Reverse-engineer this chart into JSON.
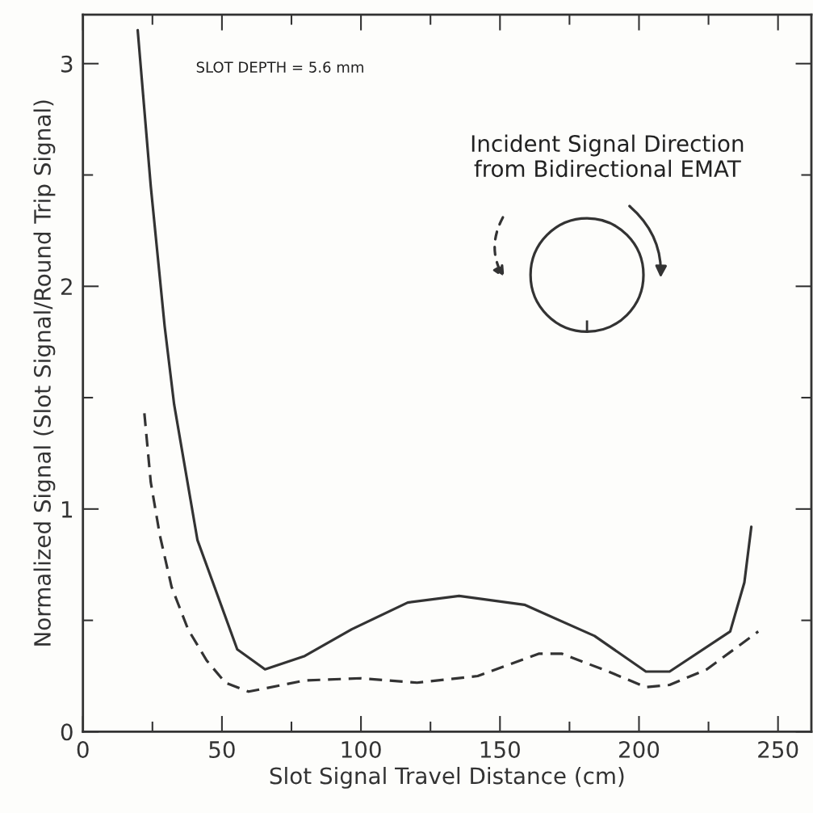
{
  "chart_data": {
    "type": "line",
    "xlabel": "Slot Signal Travel Distance (cm)",
    "ylabel": "Normalized Signal (Slot Signal/Round Trip Signal)",
    "annotations": [
      "SLOT DEPTH = 5.6 mm",
      "Incident Signal Direction\nfrom Bidirectional EMAT"
    ],
    "xlim": [
      0,
      262
    ],
    "ylim": [
      0,
      3.22
    ],
    "xticks": [
      0,
      {
        "value": 25,
        "label": null
      },
      50,
      {
        "value": 75,
        "label": null
      },
      100,
      {
        "value": 125,
        "label": null
      },
      150,
      {
        "value": 175,
        "label": null
      },
      200,
      {
        "value": 225,
        "label": null
      },
      250
    ],
    "yticks": [
      0,
      {
        "value": 0.5,
        "label": null
      },
      1,
      {
        "value": 1.5,
        "label": null
      },
      2,
      {
        "value": 2.5,
        "label": null
      },
      3
    ],
    "grid": false,
    "marker": "none",
    "series": [
      {
        "color": "#333333",
        "line_style": "solid",
        "x": [
          19.7,
          24.4,
          29.4,
          32.8,
          41.2,
          55.5,
          65.5,
          79.8,
          96.7,
          116.8,
          135.3,
          158.8,
          184,
          202.5,
          211,
          232.8,
          237.9,
          240.4
        ],
        "values": [
          3.15,
          2.45,
          1.82,
          1.47,
          0.86,
          0.37,
          0.28,
          0.34,
          0.46,
          0.58,
          0.61,
          0.57,
          0.43,
          0.27,
          0.27,
          0.45,
          0.67,
          0.92
        ]
      },
      {
        "color": "#333333",
        "line_style": "dashed",
        "x": [
          22.1,
          24.4,
          27.7,
          31.9,
          37.8,
          44.5,
          51.2,
          59.6,
          79.8,
          100,
          120.2,
          142,
          163.9,
          172.3,
          189,
          202.5,
          211,
          224.4,
          242.9
        ],
        "values": [
          1.43,
          1.12,
          0.88,
          0.65,
          0.46,
          0.32,
          0.22,
          0.18,
          0.23,
          0.24,
          0.22,
          0.25,
          0.35,
          0.35,
          0.27,
          0.2,
          0.21,
          0.28,
          0.45
        ]
      }
    ]
  }
}
